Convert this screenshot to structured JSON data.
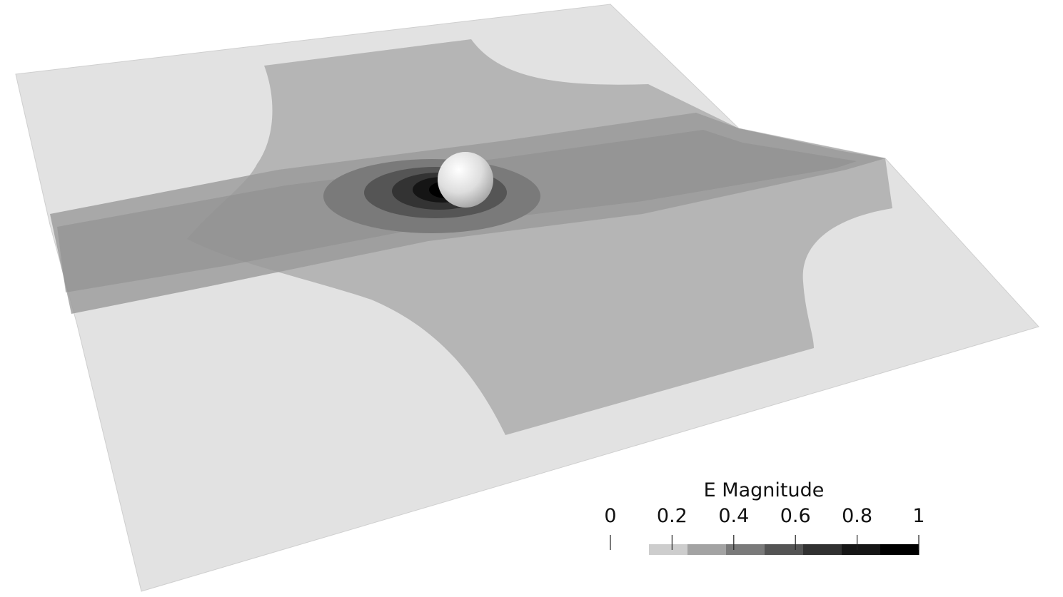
{
  "scene": {
    "surface_colors": {
      "base": "#e2e2e2",
      "band_light": "#bdbdbd",
      "band_mid": "#a9a9a9",
      "band_dark": "#8a8a8a",
      "band_darker": "#666666",
      "band_darkest": "#3c3c3c",
      "core": "#000000",
      "sphere": "#d8d8d8"
    }
  },
  "legend": {
    "title": "E Magnitude",
    "ticks": [
      {
        "label": "0",
        "value": 0
      },
      {
        "label": "0.2",
        "value": 0.2
      },
      {
        "label": "0.4",
        "value": 0.4
      },
      {
        "label": "0.6",
        "value": 0.6
      },
      {
        "label": "0.8",
        "value": 0.8
      },
      {
        "label": "1",
        "value": 1
      }
    ],
    "color_bins": [
      "#cdcdcd",
      "#a3a3a3",
      "#7a7a7a",
      "#545454",
      "#313131",
      "#161616",
      "#000000"
    ]
  }
}
